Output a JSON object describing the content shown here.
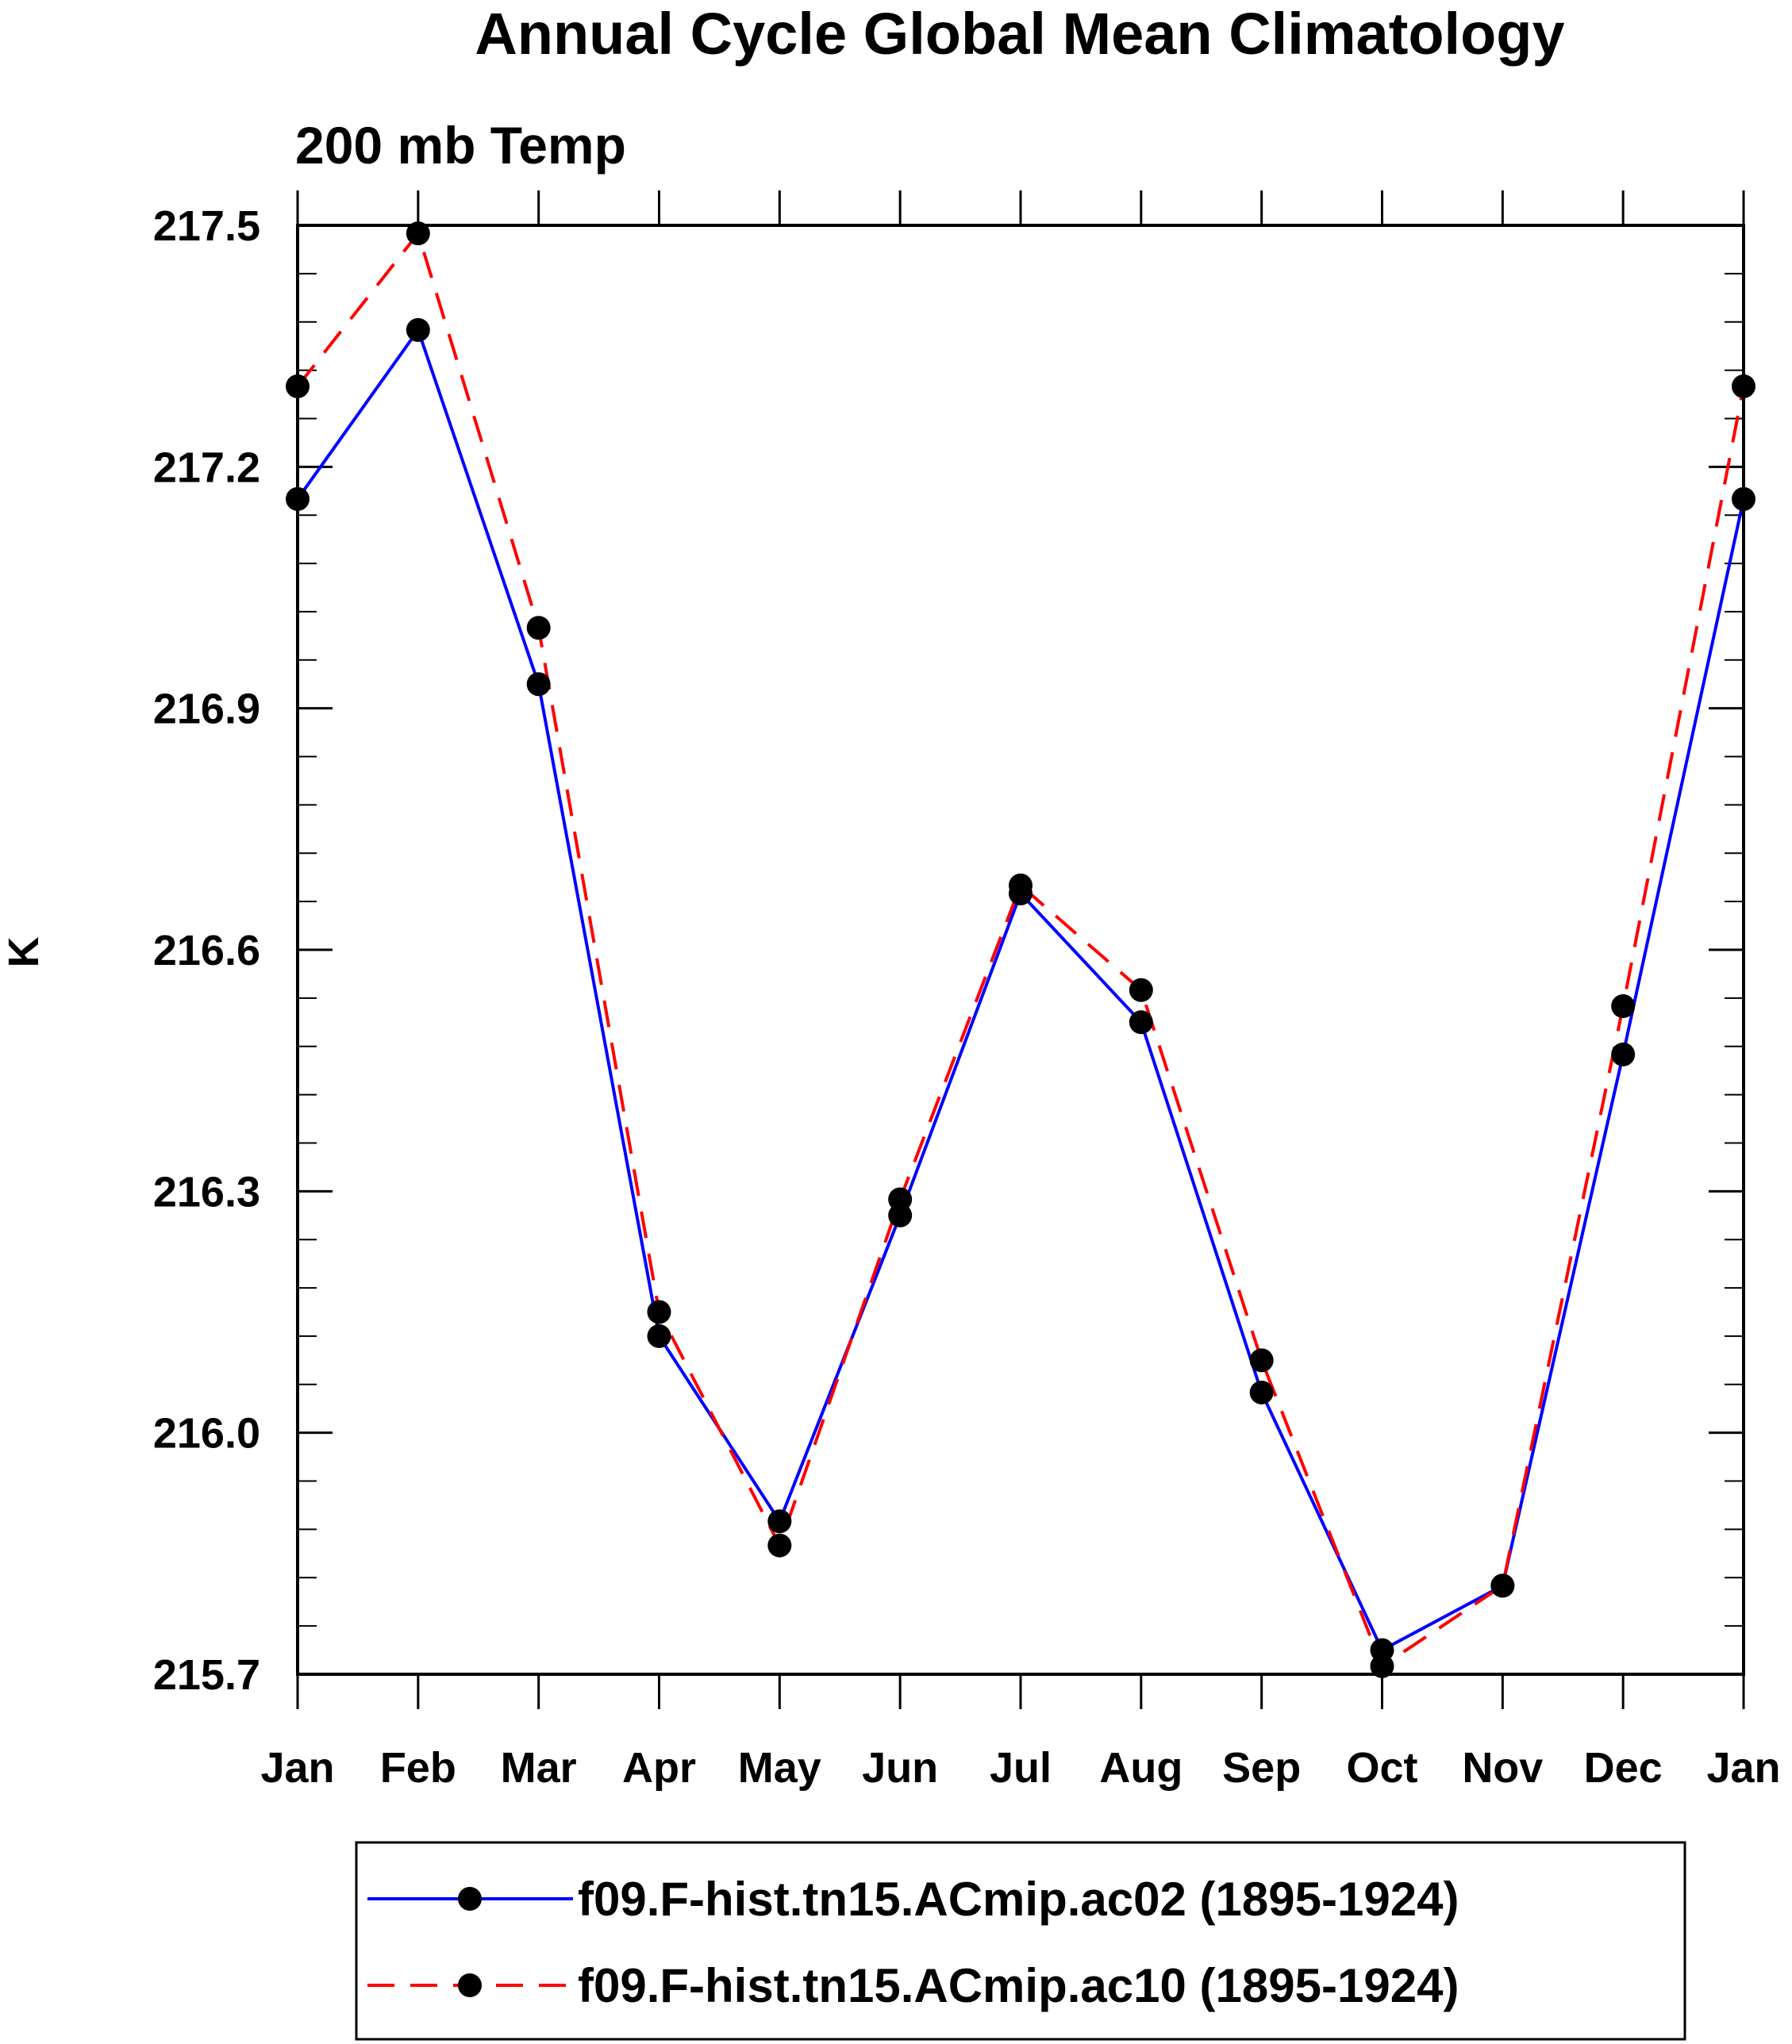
{
  "chart_data": {
    "type": "line",
    "title": "Annual Cycle Global Mean Climatology",
    "subtitle": "200 mb Temp",
    "xlabel": "",
    "ylabel": "K",
    "categories": [
      "Jan",
      "Feb",
      "Mar",
      "Apr",
      "May",
      "Jun",
      "Jul",
      "Aug",
      "Sep",
      "Oct",
      "Nov",
      "Dec",
      "Jan"
    ],
    "ylim": [
      215.7,
      217.5
    ],
    "yticks": [
      215.7,
      216.0,
      216.3,
      216.6,
      216.9,
      217.2,
      217.5
    ],
    "ytick_labels": [
      "215.7",
      "216.0",
      "216.3",
      "216.6",
      "216.9",
      "217.2",
      "217.5"
    ],
    "grid": false,
    "legend_position": "bottom",
    "series": [
      {
        "name": "f09.F-hist.tn15.ACmip.ac02 (1895-1924)",
        "color": "#0000ff",
        "line_style": "solid",
        "marker": "circle",
        "values": [
          217.16,
          217.37,
          216.93,
          216.12,
          215.89,
          216.27,
          216.67,
          216.51,
          216.05,
          215.73,
          215.81,
          216.47,
          217.16
        ]
      },
      {
        "name": "f09.F-hist.tn15.ACmip.ac10 (1895-1924)",
        "color": "#ff0000",
        "line_style": "dashed",
        "marker": "circle",
        "values": [
          217.3,
          217.49,
          217.0,
          216.15,
          215.86,
          216.29,
          216.68,
          216.55,
          216.09,
          215.71,
          215.81,
          216.53,
          217.3
        ]
      }
    ]
  }
}
